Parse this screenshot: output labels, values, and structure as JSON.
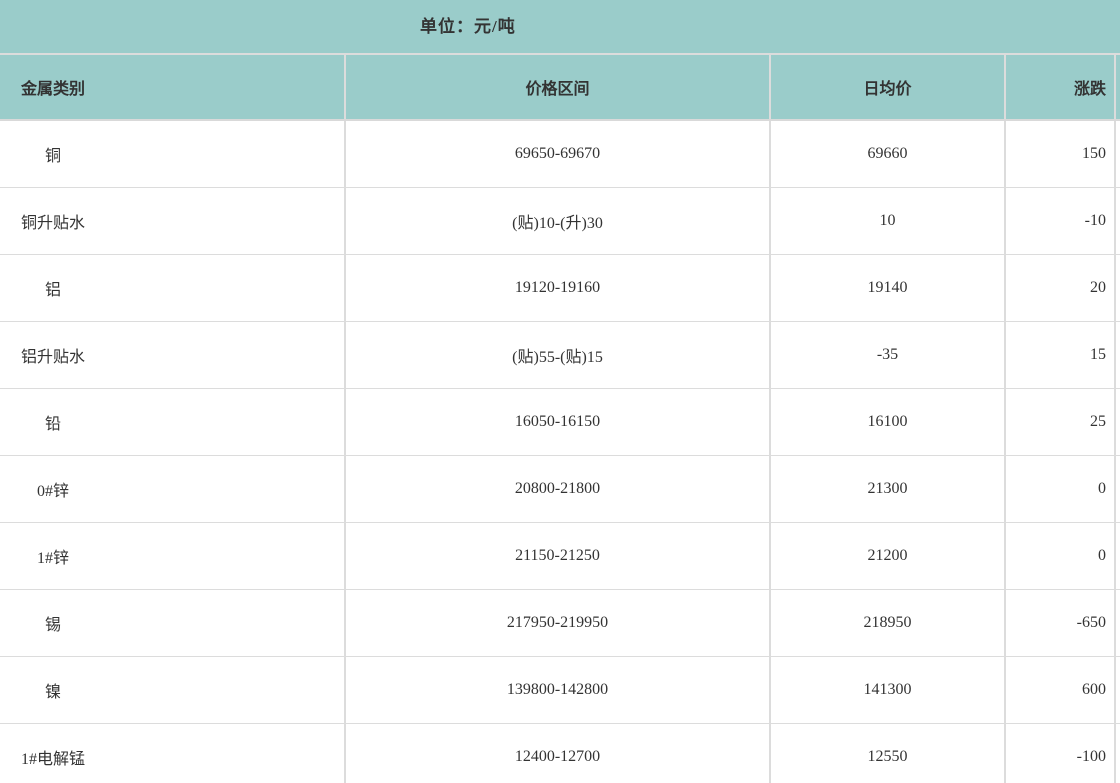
{
  "colors": {
    "header_bg": "#9accca",
    "grid_line": "#dcdcdc",
    "text": "#333333",
    "body_bg": "#ffffff"
  },
  "chart_data": {
    "type": "table",
    "title": "单位：元/吨",
    "columns": [
      "金属类别",
      "价格区间",
      "日均价",
      "涨跌"
    ],
    "rows": [
      [
        "铜",
        "69650-69670",
        "69660",
        "150"
      ],
      [
        "铜升贴水",
        "(贴)10-(升)30",
        "10",
        "-10"
      ],
      [
        "铝",
        "19120-19160",
        "19140",
        "20"
      ],
      [
        "铝升贴水",
        "(贴)55-(贴)15",
        "-35",
        "15"
      ],
      [
        "铅",
        "16050-16150",
        "16100",
        "25"
      ],
      [
        "0#锌",
        "20800-21800",
        "21300",
        "0"
      ],
      [
        "1#锌",
        "21150-21250",
        "21200",
        "0"
      ],
      [
        "锡",
        "217950-219950",
        "218950",
        "-650"
      ],
      [
        "镍",
        "139800-142800",
        "141300",
        "600"
      ],
      [
        "1#电解锰",
        "12400-12700",
        "12550",
        "-100"
      ]
    ]
  }
}
